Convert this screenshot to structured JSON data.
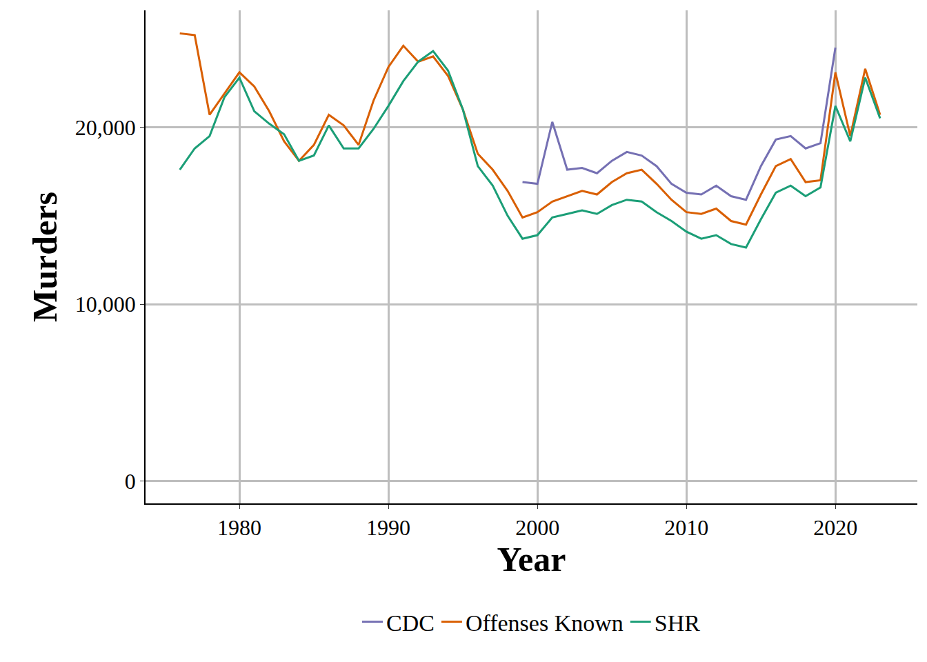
{
  "chart_data": {
    "type": "line",
    "x_label": "Year",
    "y_label": "Murders",
    "x": [
      1976,
      1977,
      1978,
      1979,
      1980,
      1981,
      1982,
      1983,
      1984,
      1985,
      1986,
      1987,
      1988,
      1989,
      1990,
      1991,
      1992,
      1993,
      1994,
      1995,
      1996,
      1997,
      1998,
      1999,
      2000,
      2001,
      2002,
      2003,
      2004,
      2005,
      2006,
      2007,
      2008,
      2009,
      2010,
      2011,
      2012,
      2013,
      2014,
      2015,
      2016,
      2017,
      2018,
      2019,
      2020,
      2021,
      2022,
      2023
    ],
    "series": [
      {
        "name": "CDC",
        "color": "#7570b3",
        "values": [
          null,
          null,
          null,
          null,
          null,
          null,
          null,
          null,
          null,
          null,
          null,
          null,
          null,
          null,
          null,
          null,
          null,
          null,
          null,
          null,
          null,
          null,
          null,
          16900,
          16800,
          20300,
          17600,
          17700,
          17400,
          18100,
          18600,
          18400,
          17800,
          16800,
          16300,
          16200,
          16700,
          16100,
          15900,
          17800,
          19300,
          19500,
          18800,
          19100,
          24500,
          null,
          null,
          null
        ]
      },
      {
        "name": "Offenses Known",
        "color": "#d95f02",
        "values": [
          25300,
          25200,
          20700,
          21900,
          23100,
          22300,
          20900,
          19200,
          18100,
          19000,
          20700,
          20100,
          19000,
          21500,
          23400,
          24600,
          23700,
          24000,
          22900,
          21000,
          18500,
          17600,
          16400,
          14900,
          15200,
          15800,
          16100,
          16400,
          16200,
          16900,
          17400,
          17600,
          16800,
          15900,
          15200,
          15100,
          15400,
          14700,
          14500,
          16200,
          17800,
          18200,
          16900,
          17000,
          23100,
          19500,
          23300,
          20700
        ]
      },
      {
        "name": "SHR",
        "color": "#1b9e77",
        "values": [
          17600,
          18800,
          19500,
          21700,
          22800,
          20900,
          20200,
          19600,
          18100,
          18400,
          20100,
          18800,
          18800,
          19900,
          21200,
          22600,
          23700,
          24300,
          23200,
          21000,
          17800,
          16700,
          15000,
          13700,
          13900,
          14900,
          15100,
          15300,
          15100,
          15600,
          15900,
          15800,
          15200,
          14700,
          14100,
          13700,
          13900,
          13400,
          13200,
          14800,
          16300,
          16700,
          16100,
          16600,
          21200,
          19200,
          22800,
          20500
        ]
      }
    ],
    "xlim": [
      1973.7,
      2025.5
    ],
    "xticks": [
      1980,
      1990,
      2000,
      2010,
      2020
    ],
    "ylim": [
      -1250,
      26600
    ],
    "yticks": [
      0,
      {
        "value": 10000,
        "label": "10,000"
      },
      {
        "value": 20000,
        "label": "20,000"
      }
    ],
    "grid": true,
    "legend": "bottom"
  }
}
